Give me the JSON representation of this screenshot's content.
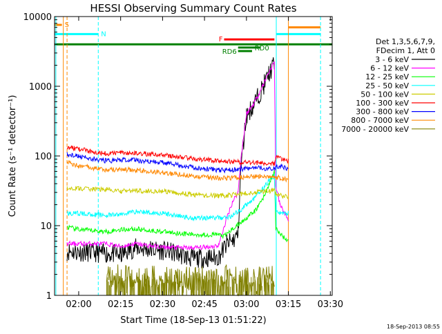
{
  "chart_data": {
    "type": "line",
    "title": "HESSI Observing Summary Count Rates",
    "xlabel": "Start Time (18-Sep-13 01:51:22)",
    "ylabel": "Count Rate (s⁻¹ detector⁻¹)",
    "y_scale": "log",
    "ylim": [
      1,
      10000
    ],
    "xlim": [
      "01:51:22",
      "03:30:40"
    ],
    "x_ticks": [
      "02:00",
      "02:15",
      "02:30",
      "02:45",
      "03:00",
      "03:15",
      "03:30"
    ],
    "y_ticks": [
      "1",
      "10",
      "100",
      "1000",
      "10000"
    ],
    "legend_header": [
      "Det 1,3,5,6,7,9,",
      "FDecim 1, Att 0"
    ],
    "legend_position": "right",
    "timestamp": "18-Sep-2013 08:55",
    "series": [
      {
        "name": "3 - 6 keV",
        "color": "#000000",
        "points": [
          [
            "01:55:50",
            4.3
          ],
          [
            "02:00",
            4.2
          ],
          [
            "02:10",
            4.0
          ],
          [
            "02:15",
            3.8
          ],
          [
            "02:20",
            4.8
          ],
          [
            "02:30",
            4.4
          ],
          [
            "02:35",
            4.0
          ],
          [
            "02:40",
            3.4
          ],
          [
            "02:45",
            3.4
          ],
          [
            "02:50",
            3.5
          ],
          [
            "02:53",
            5.5
          ],
          [
            "02:55",
            6.0
          ],
          [
            "02:57",
            7.5
          ],
          [
            "02:58",
            70
          ],
          [
            "03:00",
            380
          ],
          [
            "03:02",
            500
          ],
          [
            "03:04",
            700
          ],
          [
            "03:06",
            1000
          ],
          [
            "03:08",
            1500
          ],
          [
            "03:10",
            2100
          ]
        ]
      },
      {
        "name": "6 - 12 keV",
        "color": "#ff00ff",
        "points": [
          [
            "01:55:50",
            5.5
          ],
          [
            "02:00",
            5.5
          ],
          [
            "02:10",
            5.5
          ],
          [
            "02:15",
            5.0
          ],
          [
            "02:20",
            5.5
          ],
          [
            "02:30",
            4.9
          ],
          [
            "02:40",
            4.8
          ],
          [
            "02:45",
            4.9
          ],
          [
            "02:50",
            5.2
          ],
          [
            "02:53",
            13
          ],
          [
            "02:55",
            22
          ],
          [
            "02:57",
            30
          ],
          [
            "02:58",
            90
          ],
          [
            "03:00",
            400
          ],
          [
            "03:02",
            520
          ],
          [
            "03:04",
            720
          ],
          [
            "03:06",
            1050
          ],
          [
            "03:08",
            1600
          ],
          [
            "03:10",
            2200
          ],
          [
            "03:10:30",
            37
          ],
          [
            "03:12",
            20
          ],
          [
            "03:15",
            12
          ]
        ]
      },
      {
        "name": "12 - 25 keV",
        "color": "#00ff00",
        "points": [
          [
            "01:55:50",
            9.5
          ],
          [
            "02:00",
            8.8
          ],
          [
            "02:10",
            8.2
          ],
          [
            "02:15",
            8.8
          ],
          [
            "02:20",
            9.0
          ],
          [
            "02:30",
            8.2
          ],
          [
            "02:40",
            7.5
          ],
          [
            "02:45",
            7.4
          ],
          [
            "02:50",
            7.5
          ],
          [
            "02:52",
            7.0
          ],
          [
            "02:55",
            9.0
          ],
          [
            "02:58",
            11
          ],
          [
            "03:00",
            13
          ],
          [
            "03:03",
            16
          ],
          [
            "03:06",
            25
          ],
          [
            "03:08",
            38
          ],
          [
            "03:10",
            60
          ],
          [
            "03:10:30",
            9.0
          ],
          [
            "03:13",
            7.0
          ],
          [
            "03:15",
            6.0
          ]
        ]
      },
      {
        "name": "25 - 50 keV",
        "color": "#00ffff",
        "points": [
          [
            "01:55:50",
            15
          ],
          [
            "02:00",
            15
          ],
          [
            "02:10",
            14
          ],
          [
            "02:15",
            14.5
          ],
          [
            "02:20",
            16
          ],
          [
            "02:30",
            15
          ],
          [
            "02:40",
            13
          ],
          [
            "02:45",
            13
          ],
          [
            "02:50",
            13
          ],
          [
            "02:53",
            13
          ],
          [
            "02:55",
            14
          ],
          [
            "02:58",
            17
          ],
          [
            "03:00",
            20
          ],
          [
            "03:03",
            25
          ],
          [
            "03:06",
            34
          ],
          [
            "03:08",
            44
          ],
          [
            "03:10",
            52
          ],
          [
            "03:10:30",
            16
          ],
          [
            "03:13",
            15
          ],
          [
            "03:15",
            15
          ]
        ]
      },
      {
        "name": "50 - 100 keV",
        "color": "#cccc00",
        "points": [
          [
            "01:55:50",
            35
          ],
          [
            "02:00",
            34
          ],
          [
            "02:10",
            33
          ],
          [
            "02:15",
            31
          ],
          [
            "02:20",
            32
          ],
          [
            "02:30",
            31
          ],
          [
            "02:40",
            28
          ],
          [
            "02:45",
            27
          ],
          [
            "02:50",
            27
          ],
          [
            "02:53",
            27
          ],
          [
            "02:56",
            28
          ],
          [
            "03:00",
            29
          ],
          [
            "03:05",
            31
          ],
          [
            "03:10",
            32
          ],
          [
            "03:10:30",
            28
          ],
          [
            "03:13",
            27
          ],
          [
            "03:15",
            26
          ]
        ]
      },
      {
        "name": "100 - 300 keV",
        "color": "#ff0000",
        "points": [
          [
            "01:55:50",
            135
          ],
          [
            "02:00",
            125
          ],
          [
            "02:10",
            108
          ],
          [
            "02:15",
            112
          ],
          [
            "02:20",
            110
          ],
          [
            "02:30",
            103
          ],
          [
            "02:40",
            92
          ],
          [
            "02:45",
            88
          ],
          [
            "02:50",
            85
          ],
          [
            "02:54",
            83
          ],
          [
            "02:58",
            82
          ],
          [
            "03:00",
            81
          ],
          [
            "03:05",
            80
          ],
          [
            "03:10",
            78
          ],
          [
            "03:10:30",
            95
          ],
          [
            "03:13",
            90
          ],
          [
            "03:15",
            85
          ]
        ]
      },
      {
        "name": "300 - 800 keV",
        "color": "#0000ff",
        "points": [
          [
            "01:55:50",
            105
          ],
          [
            "02:00",
            98
          ],
          [
            "02:10",
            85
          ],
          [
            "02:15",
            88
          ],
          [
            "02:20",
            87
          ],
          [
            "02:30",
            80
          ],
          [
            "02:40",
            70
          ],
          [
            "02:45",
            66
          ],
          [
            "02:50",
            63
          ],
          [
            "02:53",
            62
          ],
          [
            "02:56",
            64
          ],
          [
            "02:58",
            65
          ],
          [
            "03:00",
            66
          ],
          [
            "03:05",
            67
          ],
          [
            "03:10",
            66
          ],
          [
            "03:10:30",
            72
          ],
          [
            "03:13",
            70
          ],
          [
            "03:15",
            65
          ]
        ]
      },
      {
        "name": "800 - 7000 keV",
        "color": "#ff8800",
        "points": [
          [
            "01:55:50",
            80
          ],
          [
            "02:00",
            72
          ],
          [
            "02:10",
            63
          ],
          [
            "02:15",
            64
          ],
          [
            "02:20",
            63
          ],
          [
            "02:30",
            58
          ],
          [
            "02:40",
            52
          ],
          [
            "02:45",
            50
          ],
          [
            "02:50",
            48
          ],
          [
            "02:53",
            48
          ],
          [
            "02:57",
            49
          ],
          [
            "03:00",
            50
          ],
          [
            "03:05",
            51
          ],
          [
            "03:10",
            50
          ],
          [
            "03:10:30",
            50
          ],
          [
            "03:13",
            47
          ],
          [
            "03:15",
            45
          ]
        ]
      },
      {
        "name": "7000 - 20000 keV",
        "color": "#808000",
        "points": [
          [
            "02:10",
            1.5
          ],
          [
            "02:15",
            1.6
          ],
          [
            "02:20",
            1.5
          ],
          [
            "02:25",
            1.7
          ],
          [
            "02:35",
            1.4
          ],
          [
            "02:42",
            1.5
          ],
          [
            "02:48",
            1.4
          ],
          [
            "02:53",
            1.6
          ],
          [
            "02:56",
            1.5
          ],
          [
            "03:00",
            1.5
          ],
          [
            "03:05",
            1.6
          ],
          [
            "03:08",
            1.5
          ],
          [
            "03:10",
            1.5
          ]
        ]
      }
    ],
    "flags": [
      {
        "label": "S",
        "color": "#ff8800",
        "start": "01:51:22",
        "end": "01:54:00",
        "level": 7600
      },
      {
        "label": "N",
        "color": "#00ffff",
        "start": "01:51:22",
        "end": "02:07:00",
        "level": 5600
      },
      {
        "label": "",
        "color": "#00ffff",
        "start": "03:10:40",
        "end": "03:26:30",
        "level": 5600
      },
      {
        "label": "",
        "color": "#ff8800",
        "start": "03:15:00",
        "end": "03:26:30",
        "level": 7000
      },
      {
        "label": "",
        "color": "#008000",
        "start": "01:51:22",
        "end": "03:30:40",
        "level": 4000
      },
      {
        "label": "F",
        "color": "#ff0000",
        "start": "02:52:00",
        "end": "03:10:00",
        "level": 4700
      },
      {
        "label": "RD0",
        "color": "#008000",
        "start": "02:57:00",
        "end": "03:05:00",
        "level": 3600
      },
      {
        "label": "RD6",
        "color": "#008000",
        "start": "02:57:00",
        "end": "03:02:00",
        "level": 3200
      }
    ],
    "markers": [
      {
        "time": "01:51:50",
        "color": "#00ffff"
      },
      {
        "time": "01:54:30",
        "color": "#ff8800"
      },
      {
        "time": "01:55:50",
        "color": "#ff8800"
      },
      {
        "time": "02:07:00",
        "color": "#00ffff"
      },
      {
        "time": "03:10:40",
        "color": "#00ffff"
      },
      {
        "time": "03:15:00",
        "color": "#ff8800"
      },
      {
        "time": "03:26:30",
        "color": "#00ffff"
      }
    ]
  }
}
